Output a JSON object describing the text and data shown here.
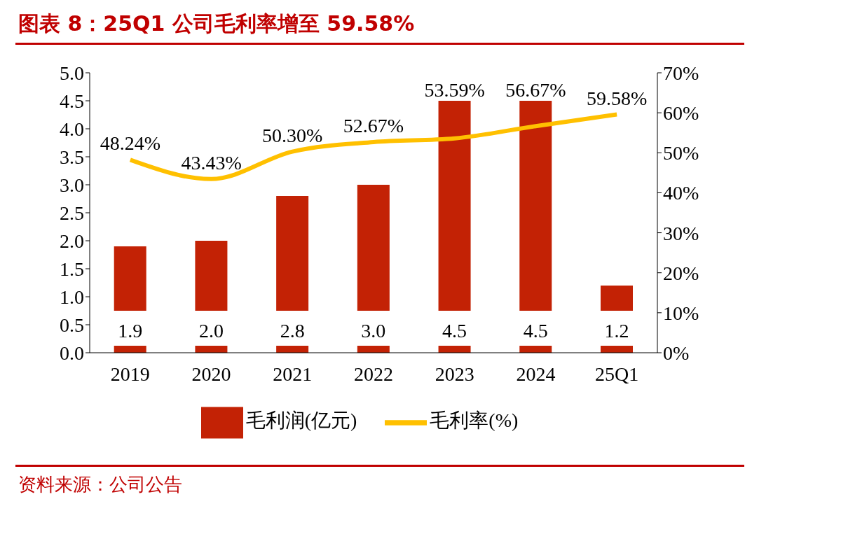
{
  "chart_data": {
    "type": "bar",
    "title": "图表 8：25Q1 公司毛利率增至 59.58%",
    "categories": [
      "2019",
      "2020",
      "2021",
      "2022",
      "2023",
      "2024",
      "25Q1"
    ],
    "series": [
      {
        "name": "毛利润(亿元)",
        "color": "#c32205",
        "values": [
          1.9,
          2.0,
          2.8,
          3.0,
          4.5,
          4.5,
          1.2
        ],
        "value_labels": [
          "1.9",
          "2.0",
          "2.8",
          "3.0",
          "4.5",
          "4.5",
          "1.2"
        ]
      },
      {
        "name": "毛利率(%)",
        "type": "line",
        "axis": "y2",
        "color": "#ffc000",
        "values": [
          48.24,
          43.43,
          50.3,
          52.67,
          53.59,
          56.67,
          59.58
        ],
        "value_labels": [
          "48.24%",
          "43.43%",
          "50.30%",
          "52.67%",
          "53.59%",
          "56.67%",
          "59.58%"
        ]
      }
    ],
    "ylim": [
      0,
      5
    ],
    "yticks": [
      {
        "value": 0,
        "label": "0.0"
      },
      {
        "value": 0.5,
        "label": "0.5"
      },
      {
        "value": 1,
        "label": "1.0"
      },
      {
        "value": 1.5,
        "label": "1.5"
      },
      {
        "value": 2,
        "label": "2.0"
      },
      {
        "value": 2.5,
        "label": "2.5"
      },
      {
        "value": 3,
        "label": "3.0"
      },
      {
        "value": 3.5,
        "label": "3.5"
      },
      {
        "value": 4,
        "label": "4.0"
      },
      {
        "value": 4.5,
        "label": "4.5"
      },
      {
        "value": 5,
        "label": "5.0"
      }
    ],
    "y2lim": [
      0,
      70
    ],
    "y2ticks": [
      {
        "value": 0,
        "label": "0%"
      },
      {
        "value": 10,
        "label": "10%"
      },
      {
        "value": 20,
        "label": "20%"
      },
      {
        "value": 30,
        "label": "30%"
      },
      {
        "value": 40,
        "label": "40%"
      },
      {
        "value": 50,
        "label": "50%"
      },
      {
        "value": 60,
        "label": "60%"
      },
      {
        "value": 70,
        "label": "70%"
      }
    ],
    "grid": false,
    "legend": "bottom",
    "marker": "none",
    "annotations": [
      "资料来源：公司公告"
    ]
  }
}
